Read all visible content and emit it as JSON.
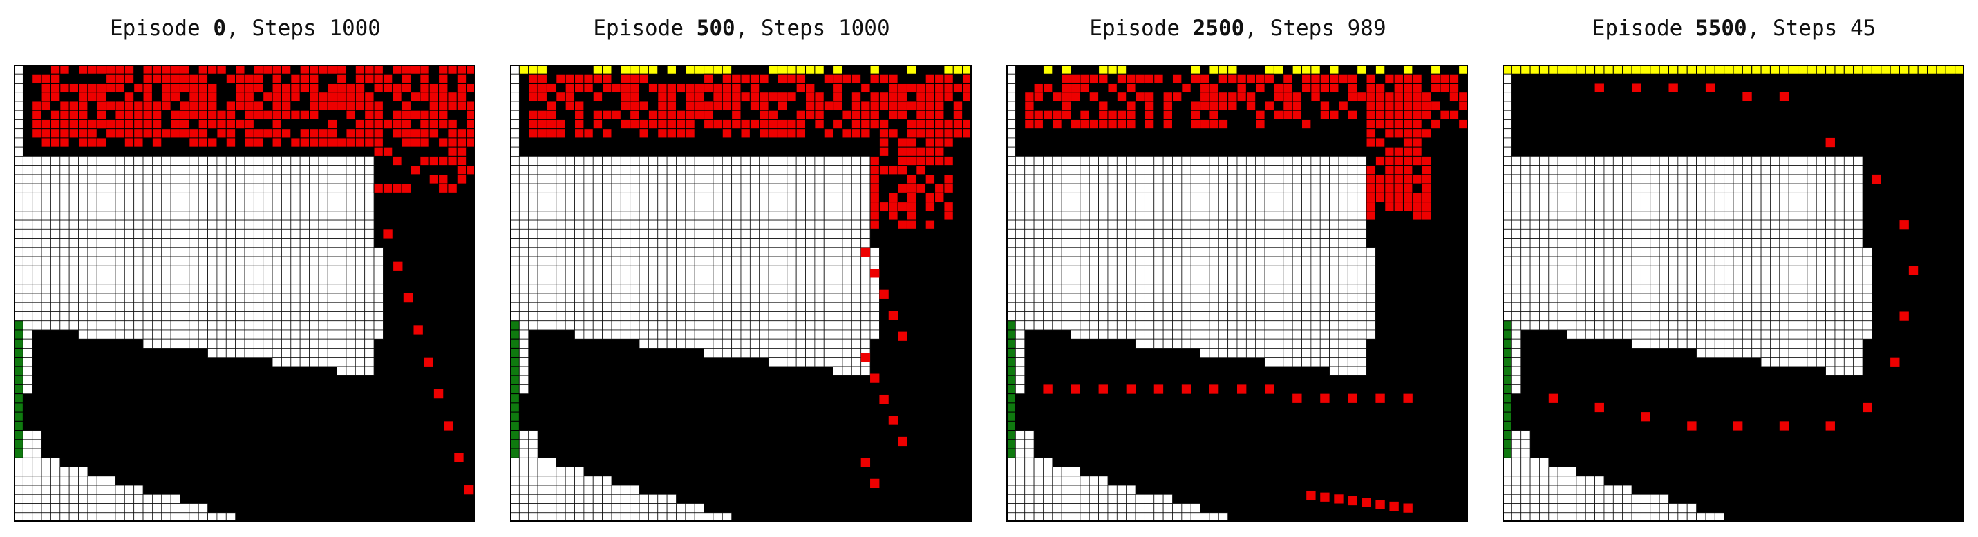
{
  "colors": {
    "wall": "#ffffff",
    "gridline": "#111111",
    "track": "#000000",
    "visited": "#ee0000",
    "finish": "#ffff00",
    "start": "#0f7a0f",
    "border": "#000000"
  },
  "panels": [
    {
      "title_prefix": "Episode ",
      "episode": "0",
      "title_suffix": ", Steps 1000",
      "snapshot": "early"
    },
    {
      "title_prefix": "Episode ",
      "episode": "500",
      "title_suffix": ", Steps 1000",
      "snapshot": "mid"
    },
    {
      "title_prefix": "Episode ",
      "episode": "2500",
      "title_suffix": ", Steps 989",
      "snapshot": "late"
    },
    {
      "title_prefix": "Episode ",
      "episode": "5500",
      "title_suffix": ", Steps 45",
      "snapshot": "final"
    }
  ]
}
